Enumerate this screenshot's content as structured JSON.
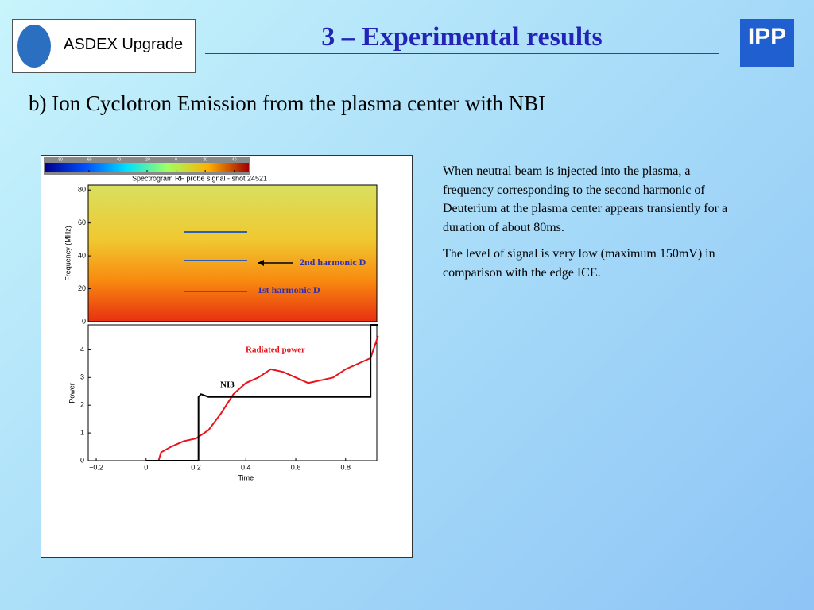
{
  "header": {
    "logo_text": "ASDEX Upgrade",
    "title": "3 – Experimental results",
    "ipp": "IPP"
  },
  "subtitle": "b) Ion Cyclotron Emission from the plasma center with NBI",
  "paragraphs": [
    "When neutral beam is injected into the plasma, a frequency corresponding to the second harmonic of Deuterium at the plasma center appears transiently for a duration of about 80ms.",
    "The level of signal is very low (maximum 150mV) in comparison with the edge ICE."
  ],
  "figure": {
    "spectrogram": {
      "title": "Spectrogram RF probe signal - shot 24521",
      "ylabel": "Frequency (MHz)",
      "ylim": [
        0,
        83
      ],
      "yticks": [
        0,
        20,
        40,
        60,
        80
      ],
      "colorbar_ticks": [
        -80,
        -60,
        -40,
        -20,
        0,
        20,
        40
      ],
      "colorbar_lim": [
        -90,
        50
      ],
      "annotations": [
        "2nd harmonic D",
        "1st harmonic D"
      ]
    },
    "power": {
      "type": "line",
      "xlabel": "Time",
      "ylabel": "Power",
      "xlim": [
        -0.232,
        0.925
      ],
      "ylim": [
        0,
        4.9
      ],
      "xticks": [
        {
          "value": -0.2,
          "label": "−0.2"
        },
        0,
        0.2,
        0.4,
        0.6,
        0.8
      ],
      "yticks": [
        0,
        1,
        2,
        3,
        4
      ],
      "series": [
        {
          "name": "Radiated power",
          "color": "#e8141b",
          "x": [
            0.05,
            0.06,
            0.1,
            0.15,
            0.2,
            0.25,
            0.3,
            0.35,
            0.4,
            0.45,
            0.5,
            0.55,
            0.6,
            0.65,
            0.7,
            0.75,
            0.8,
            0.85,
            0.9,
            0.93
          ],
          "values": [
            0,
            0.3,
            0.5,
            0.7,
            0.8,
            1.1,
            1.7,
            2.4,
            2.8,
            3.0,
            3.3,
            3.2,
            3.0,
            2.8,
            2.9,
            3.0,
            3.3,
            3.5,
            3.7,
            4.5
          ]
        },
        {
          "name": "NI3",
          "color": "#000000",
          "x": [
            0,
            0.21,
            0.21,
            0.22,
            0.25,
            0.9,
            0.9,
            0.93
          ],
          "values": [
            0,
            0,
            2.3,
            2.4,
            2.3,
            2.3,
            4.9,
            4.9
          ]
        }
      ]
    }
  }
}
